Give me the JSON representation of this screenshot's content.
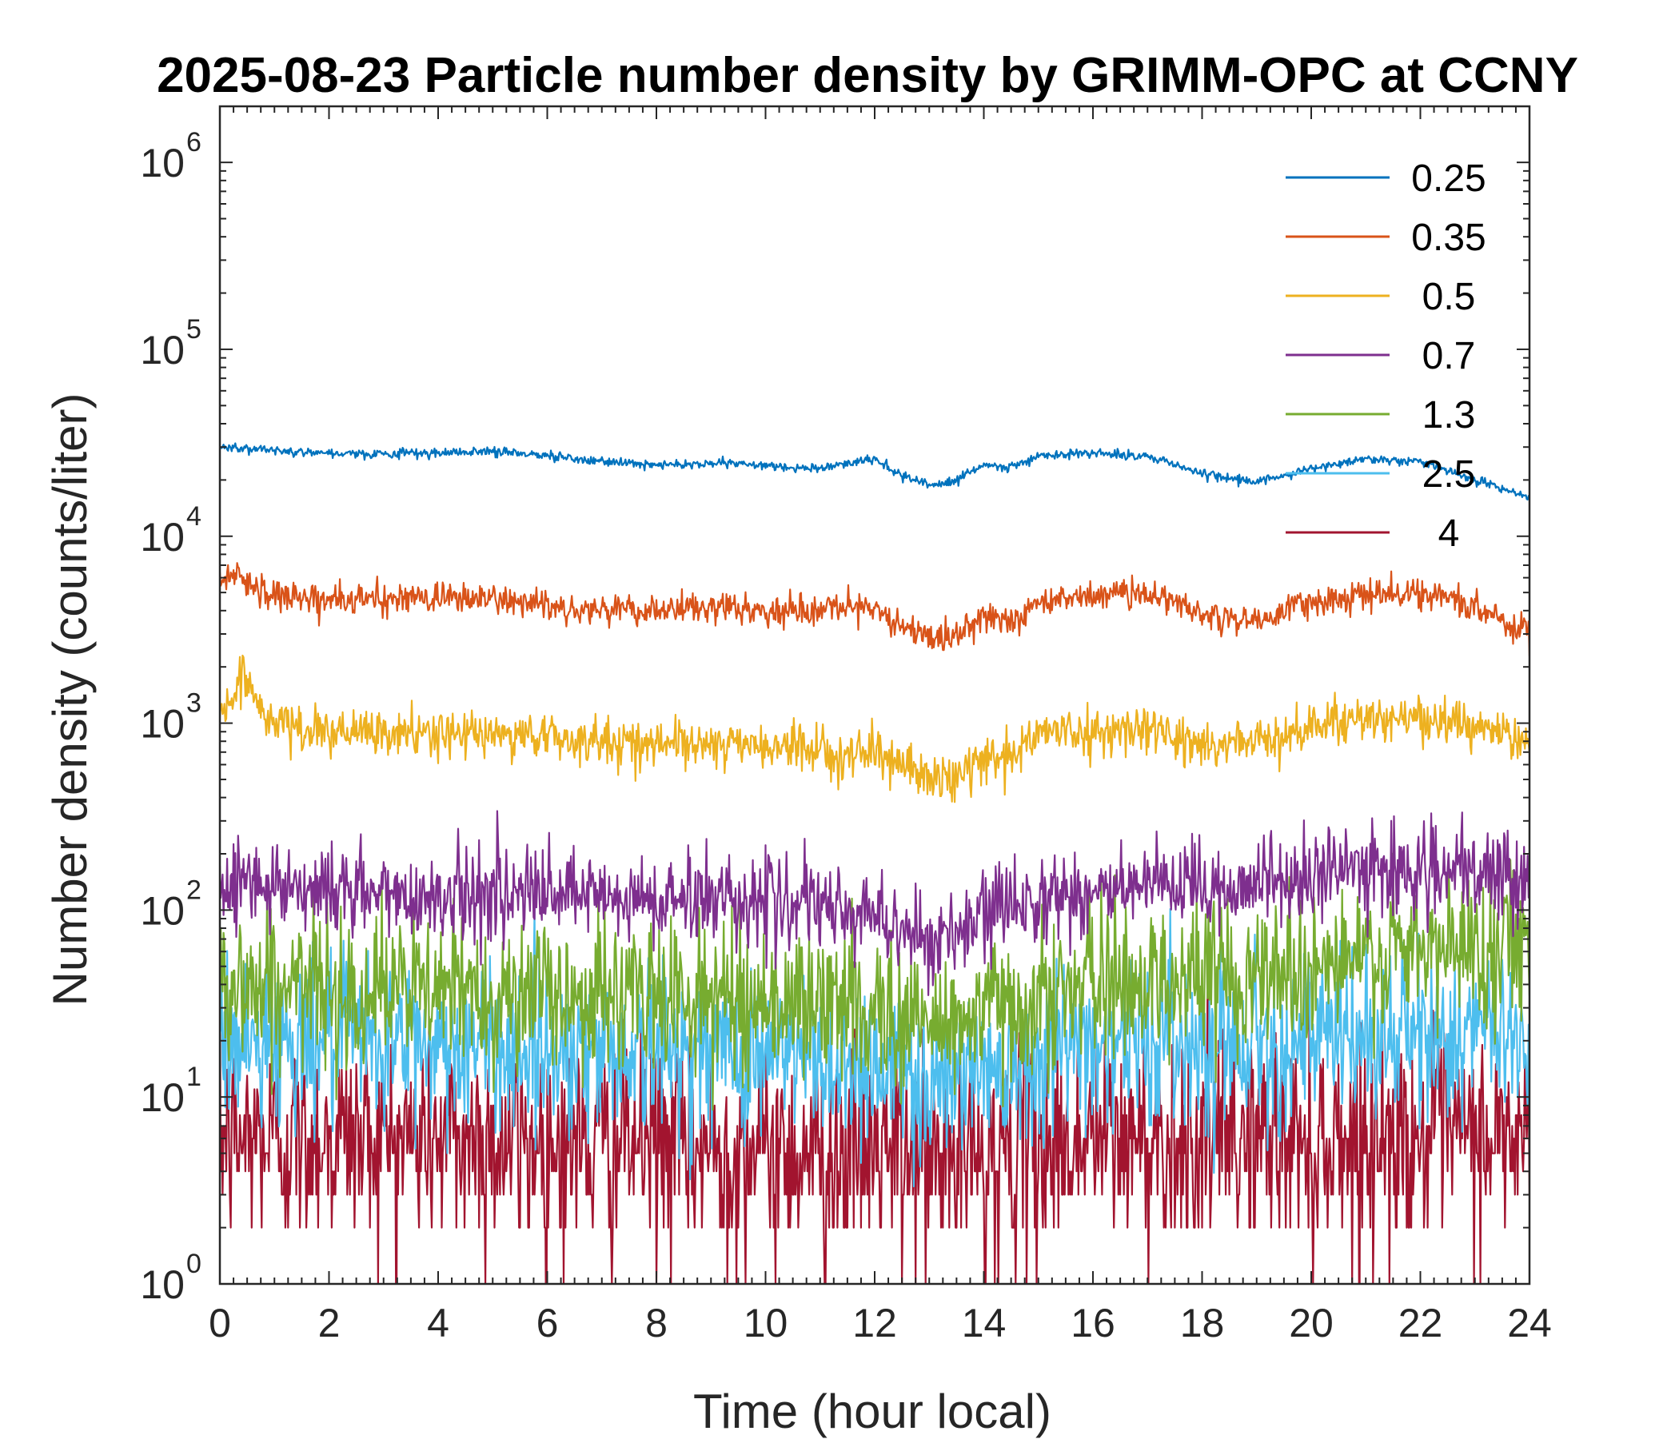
{
  "chart_data": {
    "type": "line",
    "title": "2025-08-23 Particle number density by GRIMM-OPC at CCNY",
    "xlabel": "Time (hour local)",
    "ylabel": "Number density (counts/liter)",
    "xlim": [
      0,
      24
    ],
    "ylim_log10": [
      0,
      6.3
    ],
    "y_scale": "log",
    "x_ticks": [
      0,
      2,
      4,
      6,
      8,
      10,
      12,
      14,
      16,
      18,
      20,
      22,
      24
    ],
    "x_tick_labels": [
      "0",
      "2",
      "4",
      "6",
      "8",
      "10",
      "12",
      "14",
      "16",
      "18",
      "20",
      "22",
      "24"
    ],
    "y_ticks": [
      {
        "base": "10",
        "exp": "0",
        "value": 1
      },
      {
        "base": "10",
        "exp": "1",
        "value": 10
      },
      {
        "base": "10",
        "exp": "2",
        "value": 100
      },
      {
        "base": "10",
        "exp": "3",
        "value": 1000
      },
      {
        "base": "10",
        "exp": "4",
        "value": 10000
      },
      {
        "base": "10",
        "exp": "5",
        "value": 100000
      },
      {
        "base": "10",
        "exp": "6",
        "value": 1000000
      }
    ],
    "legend_position": "top-right",
    "series": [
      {
        "name": "0.25",
        "color": "#0072BD",
        "noise": 0.012,
        "floor": 0,
        "x": [
          0,
          1,
          2,
          3,
          4,
          5,
          6,
          7,
          8,
          9,
          10,
          11,
          12,
          12.5,
          13,
          13.5,
          14,
          14.5,
          15,
          16,
          17,
          18,
          19,
          20,
          21,
          22,
          23,
          24
        ],
        "y": [
          30000,
          29000,
          28000,
          27500,
          28000,
          28500,
          27000,
          25000,
          24000,
          24500,
          24000,
          23000,
          26000,
          21000,
          18500,
          20000,
          24000,
          23000,
          27000,
          28000,
          27000,
          21500,
          19500,
          23000,
          26000,
          25000,
          20000,
          16000
        ]
      },
      {
        "name": "0.35",
        "color": "#D95319",
        "noise": 0.04,
        "floor": 0,
        "x": [
          0,
          0.3,
          0.5,
          1,
          2,
          3,
          4,
          5,
          6,
          7,
          8,
          9,
          10,
          11,
          12,
          12.5,
          13,
          13.5,
          14,
          14.5,
          15,
          16,
          17,
          18,
          19,
          20,
          21,
          22,
          23,
          24
        ],
        "y": [
          5500,
          6500,
          5800,
          4800,
          4600,
          4600,
          4700,
          4600,
          4300,
          4000,
          4000,
          4100,
          4000,
          3900,
          4200,
          3300,
          2800,
          3000,
          3800,
          3400,
          4500,
          4800,
          5000,
          3800,
          3500,
          4500,
          4800,
          5000,
          4200,
          3000
        ]
      },
      {
        "name": "0.5",
        "color": "#EDB120",
        "noise": 0.06,
        "floor": 0,
        "x": [
          0,
          0.3,
          0.4,
          0.6,
          1,
          2,
          3,
          4,
          5,
          6,
          7,
          8,
          9,
          10,
          11,
          12,
          12.5,
          13,
          13.5,
          14,
          14.5,
          15,
          16,
          17,
          18,
          19,
          20,
          21,
          22,
          23,
          24
        ],
        "y": [
          1100,
          1400,
          2000,
          1300,
          1000,
          880,
          870,
          880,
          870,
          850,
          800,
          780,
          780,
          750,
          700,
          700,
          600,
          500,
          520,
          650,
          680,
          880,
          900,
          950,
          750,
          800,
          950,
          1100,
          1050,
          950,
          800
        ]
      },
      {
        "name": "0.7",
        "color": "#7E2F8E",
        "noise": 0.12,
        "floor": 0,
        "x": [
          0,
          1,
          2,
          3,
          4,
          5,
          6,
          7,
          8,
          9,
          10,
          11,
          12,
          12.5,
          13,
          13.5,
          14,
          14.5,
          15,
          16,
          17,
          18,
          19,
          20,
          21,
          22,
          23,
          24
        ],
        "y": [
          150,
          140,
          130,
          120,
          120,
          125,
          120,
          115,
          110,
          120,
          115,
          100,
          95,
          80,
          70,
          70,
          90,
          110,
          120,
          125,
          130,
          130,
          140,
          150,
          170,
          160,
          150,
          160
        ]
      },
      {
        "name": "1.3",
        "color": "#77AC30",
        "noise": 0.2,
        "floor": 0,
        "x": [
          0,
          2,
          4,
          6,
          8,
          10,
          12,
          13,
          14,
          16,
          18,
          20,
          22,
          24
        ],
        "y": [
          40,
          38,
          37,
          35,
          35,
          33,
          30,
          24,
          28,
          40,
          45,
          50,
          58,
          70
        ]
      },
      {
        "name": "2.5",
        "color": "#4DBEEE",
        "noise": 0.22,
        "floor": 0,
        "x": [
          0,
          2,
          4,
          6,
          8,
          10,
          12,
          13,
          14,
          16,
          18,
          20,
          22,
          24
        ],
        "y": [
          20,
          20,
          19,
          18,
          18,
          17,
          15,
          12,
          15,
          20,
          20,
          20,
          21,
          22
        ]
      },
      {
        "name": "4",
        "color": "#A2142F",
        "noise": 0.28,
        "floor": 1,
        "x": [
          0,
          4,
          8,
          12,
          13,
          16,
          20,
          24
        ],
        "y": [
          6,
          6,
          5.5,
          5,
          4.5,
          6,
          6,
          6
        ]
      }
    ]
  }
}
